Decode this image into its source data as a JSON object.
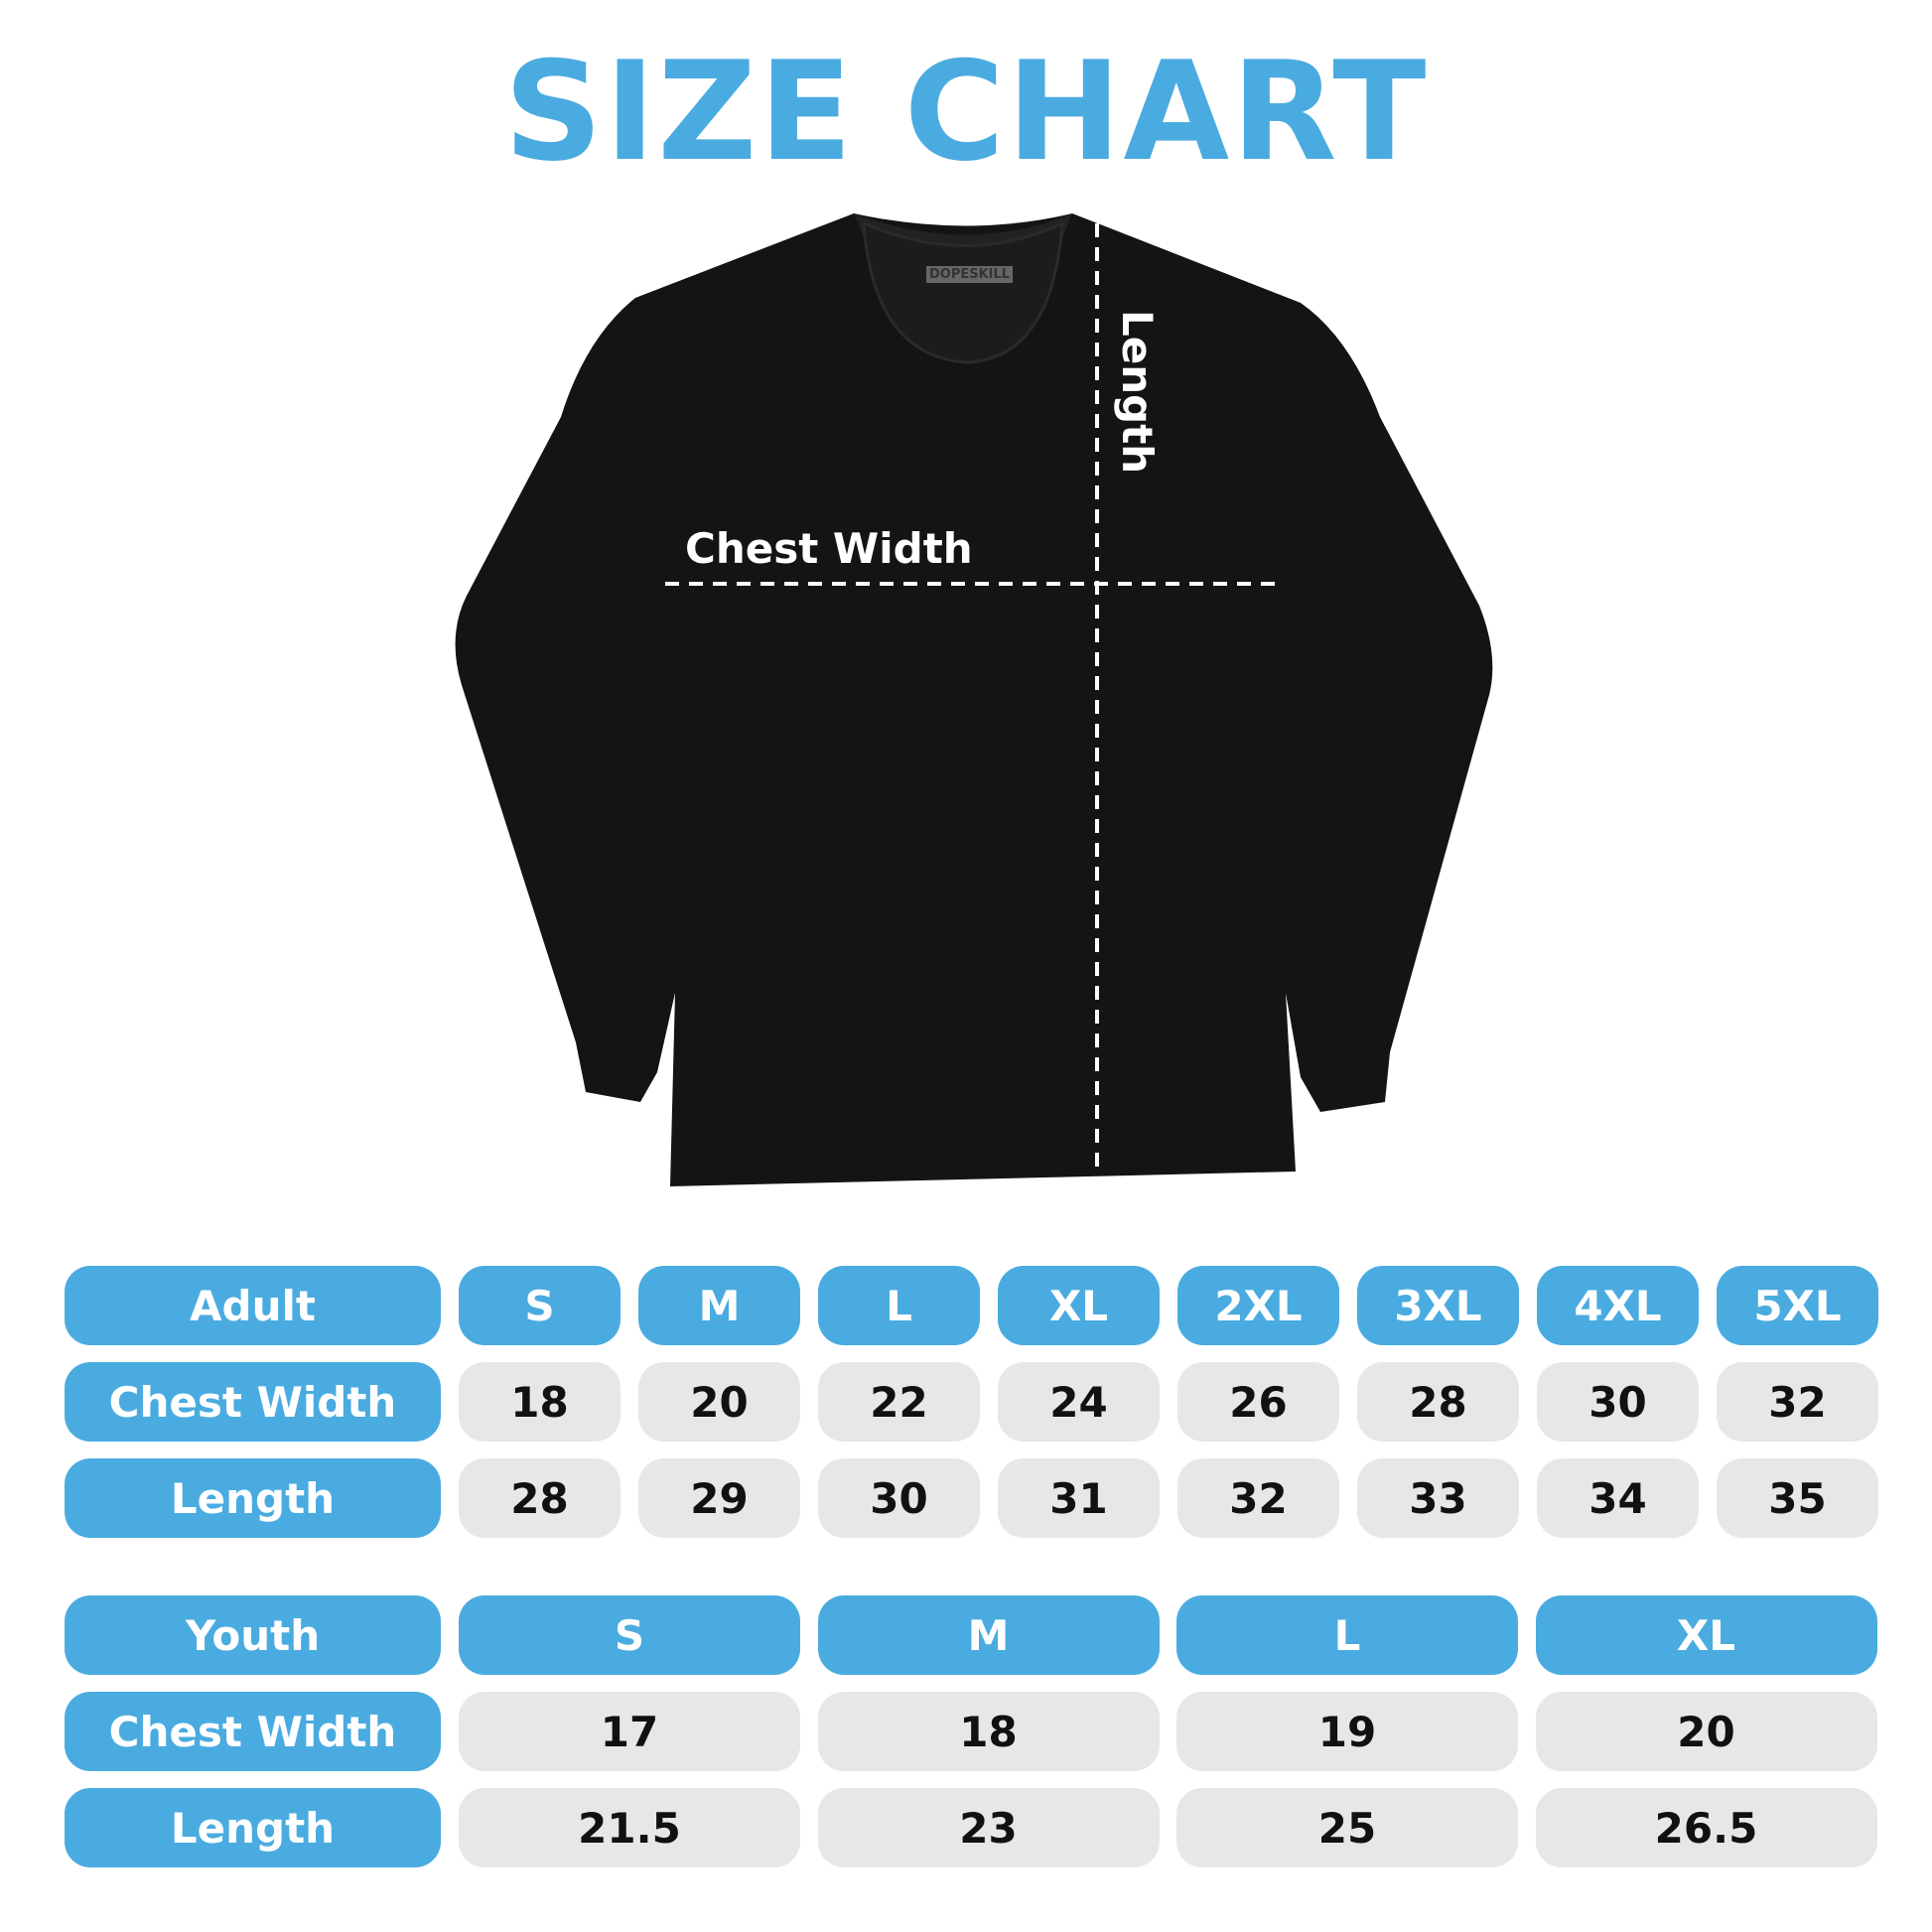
{
  "title": "SIZE CHART",
  "brand_tag": "DOPESKILL",
  "annotations": {
    "chest_width": "Chest Width",
    "length": "Length"
  },
  "colors": {
    "accent": "#4aabe0",
    "cell_bg": "#e6e7e9",
    "shirt": "#141414"
  },
  "adult": {
    "header": "Adult",
    "sizes": [
      "S",
      "M",
      "L",
      "XL",
      "2XL",
      "3XL",
      "4XL",
      "5XL"
    ],
    "rows": [
      {
        "label": "Chest Width",
        "values": [
          "18",
          "20",
          "22",
          "24",
          "26",
          "28",
          "30",
          "32"
        ]
      },
      {
        "label": "Length",
        "values": [
          "28",
          "29",
          "30",
          "31",
          "32",
          "33",
          "34",
          "35"
        ]
      }
    ]
  },
  "youth": {
    "header": "Youth",
    "sizes": [
      "S",
      "M",
      "L",
      "XL"
    ],
    "rows": [
      {
        "label": "Chest Width",
        "values": [
          "17",
          "18",
          "19",
          "20"
        ]
      },
      {
        "label": "Length",
        "values": [
          "21.5",
          "23",
          "25",
          "26.5"
        ]
      }
    ]
  }
}
